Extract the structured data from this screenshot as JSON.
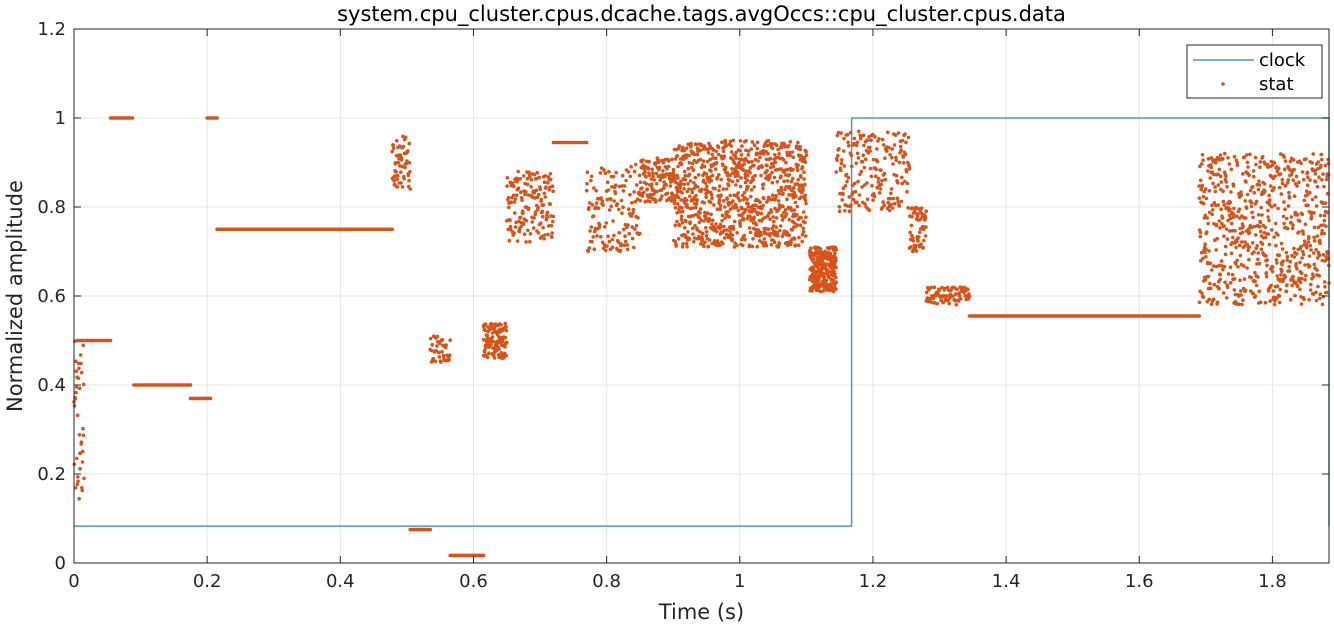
{
  "chart_data": {
    "type": "line",
    "title": "system.cpu_cluster.cpus.dcache.tags.avgOccs::cpu_cluster.cpus.data",
    "xlabel": "Time (s)",
    "ylabel": "Normalized amplitude",
    "xlim": [
      0,
      1.885
    ],
    "ylim": [
      0,
      1.2
    ],
    "x_ticks": [
      0,
      0.2,
      0.4,
      0.6,
      0.8,
      1,
      1.2,
      1.4,
      1.6,
      1.8
    ],
    "x_tick_labels": [
      "0",
      "0.2",
      "0.4",
      "0.6",
      "0.8",
      "1",
      "1.2",
      "1.4",
      "1.6",
      "1.8"
    ],
    "y_ticks": [
      0,
      0.2,
      0.4,
      0.6,
      0.8,
      1,
      1.2
    ],
    "y_tick_labels": [
      "0",
      "0.2",
      "0.4",
      "0.6",
      "0.8",
      "1",
      "1.2"
    ],
    "grid": true,
    "legend_position": "top-right",
    "colors": {
      "clock": "#4a9bc4",
      "stat": "#d95319",
      "grid": "#e6e6e6",
      "axis": "#262626"
    },
    "series": [
      {
        "name": "clock",
        "style": "line",
        "points": [
          [
            0,
            0.083
          ],
          [
            1.168,
            0.083
          ],
          [
            1.168,
            1.0
          ],
          [
            1.885,
            1.0
          ],
          [
            1.885,
            0.083
          ]
        ]
      },
      {
        "name": "stat",
        "style": "markers",
        "segments": [
          {
            "x_start": 0.0,
            "x_end": 0.015,
            "y_center": 0.3,
            "y_spread": 0.2,
            "count": 40
          },
          {
            "x_start": 0.005,
            "x_end": 0.055,
            "y_center": 0.5,
            "y_spread": 0.0,
            "count": 25
          },
          {
            "x_start": 0.055,
            "x_end": 0.088,
            "y_center": 1.0,
            "y_spread": 0.0,
            "count": 18
          },
          {
            "x_start": 0.09,
            "x_end": 0.175,
            "y_center": 0.4,
            "y_spread": 0.0,
            "count": 40
          },
          {
            "x_start": 0.175,
            "x_end": 0.205,
            "y_center": 0.37,
            "y_spread": 0.0,
            "count": 15
          },
          {
            "x_start": 0.2,
            "x_end": 0.215,
            "y_center": 1.0,
            "y_spread": 0.0,
            "count": 8
          },
          {
            "x_start": 0.215,
            "x_end": 0.478,
            "y_center": 0.75,
            "y_spread": 0.0,
            "count": 110
          },
          {
            "x_start": 0.478,
            "x_end": 0.505,
            "y_center": 0.9,
            "y_spread": 0.06,
            "count": 60
          },
          {
            "x_start": 0.505,
            "x_end": 0.535,
            "y_center": 0.075,
            "y_spread": 0.0,
            "count": 15
          },
          {
            "x_start": 0.535,
            "x_end": 0.565,
            "y_center": 0.48,
            "y_spread": 0.03,
            "count": 40
          },
          {
            "x_start": 0.565,
            "x_end": 0.615,
            "y_center": 0.017,
            "y_spread": 0.0,
            "count": 25
          },
          {
            "x_start": 0.615,
            "x_end": 0.65,
            "y_center": 0.5,
            "y_spread": 0.04,
            "count": 120
          },
          {
            "x_start": 0.65,
            "x_end": 0.72,
            "y_center": 0.8,
            "y_spread": 0.08,
            "count": 160
          },
          {
            "x_start": 0.72,
            "x_end": 0.77,
            "y_center": 0.945,
            "y_spread": 0.0,
            "count": 20
          },
          {
            "x_start": 0.77,
            "x_end": 0.85,
            "y_center": 0.8,
            "y_spread": 0.1,
            "count": 140
          },
          {
            "x_start": 0.85,
            "x_end": 0.9,
            "y_center": 0.86,
            "y_spread": 0.05,
            "count": 120
          },
          {
            "x_start": 0.9,
            "x_end": 1.1,
            "y_center": 0.83,
            "y_spread": 0.12,
            "count": 900
          },
          {
            "x_start": 1.105,
            "x_end": 1.145,
            "y_center": 0.66,
            "y_spread": 0.05,
            "count": 260
          },
          {
            "x_start": 1.145,
            "x_end": 1.255,
            "y_center": 0.88,
            "y_spread": 0.09,
            "count": 200
          },
          {
            "x_start": 1.255,
            "x_end": 1.28,
            "y_center": 0.75,
            "y_spread": 0.05,
            "count": 60
          },
          {
            "x_start": 1.28,
            "x_end": 1.345,
            "y_center": 0.6,
            "y_spread": 0.02,
            "count": 80
          },
          {
            "x_start": 1.345,
            "x_end": 1.69,
            "y_center": 0.555,
            "y_spread": 0.0,
            "count": 180
          },
          {
            "x_start": 1.69,
            "x_end": 1.885,
            "y_center": 0.75,
            "y_spread": 0.17,
            "count": 700
          }
        ]
      }
    ]
  }
}
